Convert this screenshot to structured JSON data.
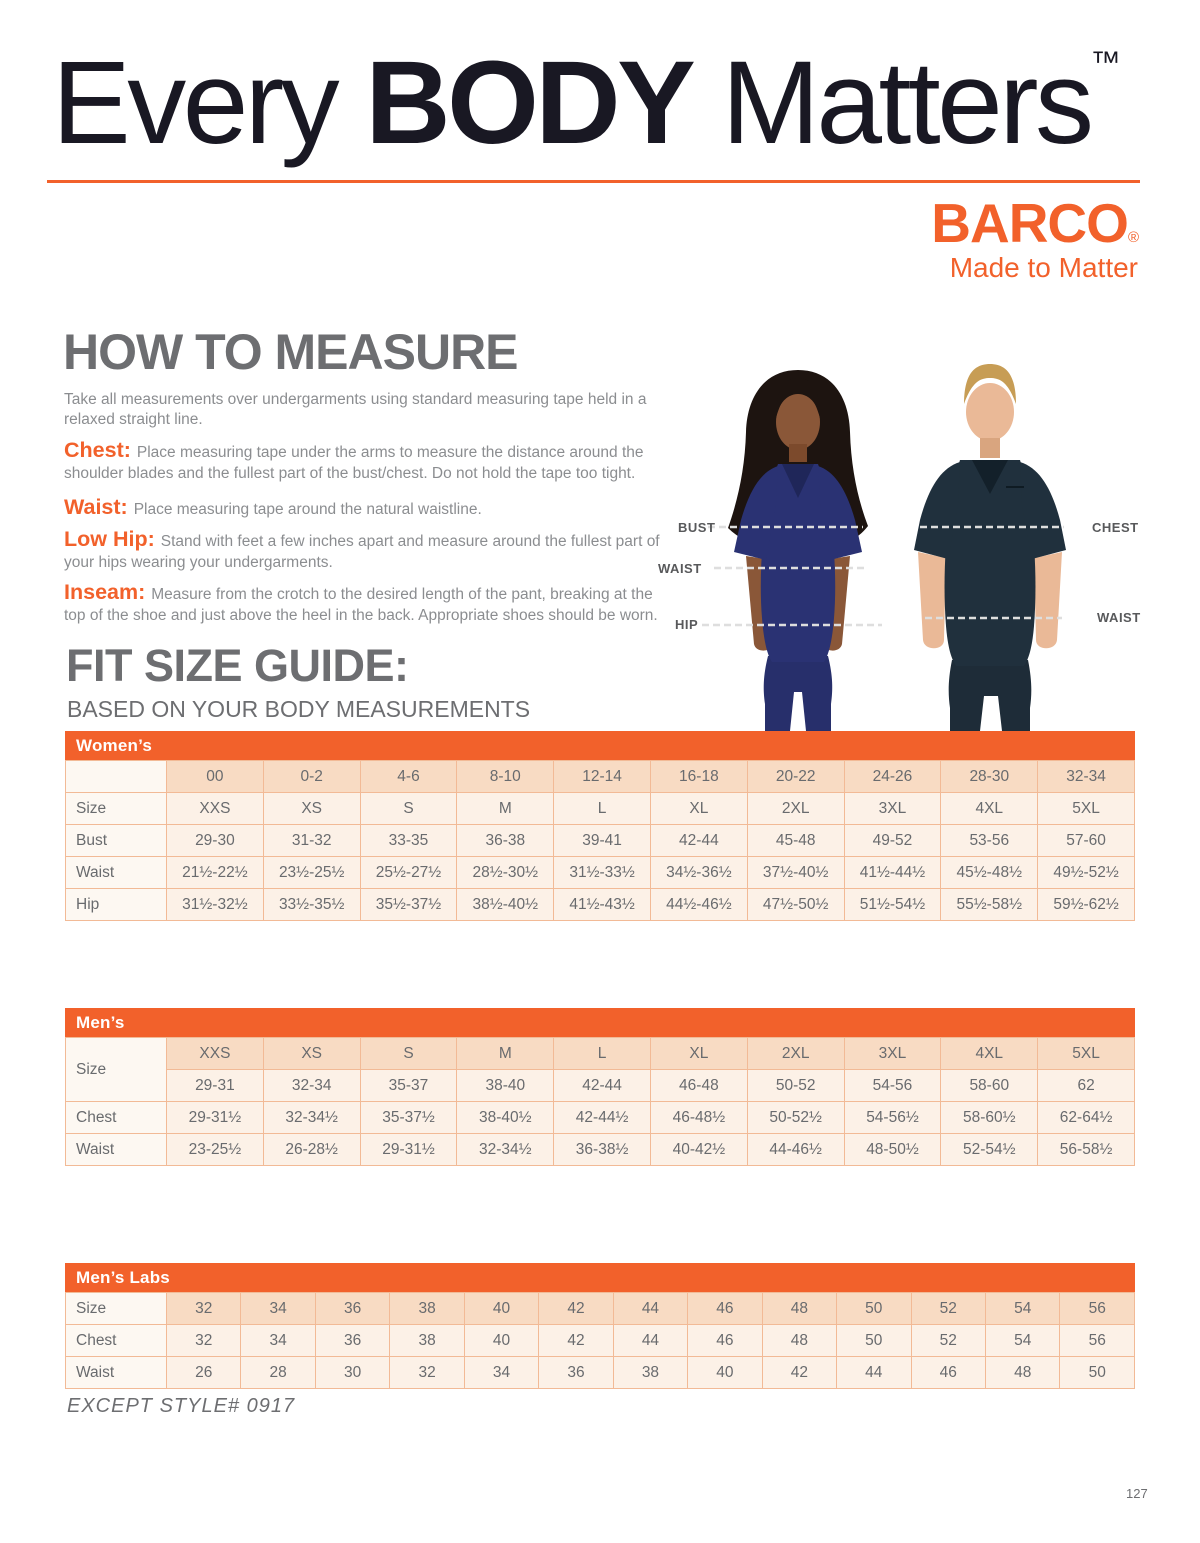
{
  "colors": {
    "accent": "#F2612B",
    "title_text": "#191823",
    "heading_gray": "#6D6E71",
    "body_gray": "#8B8D90"
  },
  "header": {
    "title_regular_1": "Every ",
    "title_bold": "BODY",
    "title_regular_2": " Matters",
    "title_trademark": "™"
  },
  "brand": {
    "logo": "BARCO",
    "registered": "®",
    "tagline": "Made to Matter"
  },
  "how_to_measure": {
    "heading": "HOW TO MEASURE",
    "intro": "Take all measurements over undergarments using standard measuring tape held in a relaxed straight line.",
    "items": [
      {
        "term": "Chest: ",
        "text": "Place measuring tape under the arms to measure the distance around the shoulder blades and the fullest part of the bust/chest. Do not hold the tape too tight."
      },
      {
        "term": "Waist: ",
        "text": "Place measuring tape around the natural waistline."
      },
      {
        "term": "Low Hip: ",
        "text": "Stand with feet a few inches apart and measure around the fullest part of your hips wearing your undergarments."
      },
      {
        "term": "Inseam: ",
        "text": "Measure from the crotch to the desired length of the pant, breaking at the top of the shoe and just above the heel in the back. Appropriate shoes should be worn."
      }
    ]
  },
  "photo": {
    "labels": {
      "bust": "BUST",
      "waist_left": "WAIST",
      "hip": "HIP",
      "chest": "CHEST",
      "waist_right": "WAIST"
    }
  },
  "fit_guide": {
    "heading": "FIT SIZE GUIDE:",
    "subheading": "BASED ON YOUR BODY MEASUREMENTS"
  },
  "womens_table": {
    "header": "Women’s",
    "rows": [
      {
        "label": "",
        "header": true,
        "values": [
          "00",
          "0-2",
          "4-6",
          "8-10",
          "12-14",
          "16-18",
          "20-22",
          "24-26",
          "28-30",
          "32-34"
        ]
      },
      {
        "label": "Size",
        "values": [
          "XXS",
          "XS",
          "S",
          "M",
          "L",
          "XL",
          "2XL",
          "3XL",
          "4XL",
          "5XL"
        ]
      },
      {
        "label": "Bust",
        "values": [
          "29-30",
          "31-32",
          "33-35",
          "36-38",
          "39-41",
          "42-44",
          "45-48",
          "49-52",
          "53-56",
          "57-60"
        ]
      },
      {
        "label": "Waist",
        "values": [
          "21½-22½",
          "23½-25½",
          "25½-27½",
          "28½-30½",
          "31½-33½",
          "34½-36½",
          "37½-40½",
          "41½-44½",
          "45½-48½",
          "49½-52½"
        ]
      },
      {
        "label": "Hip",
        "values": [
          "31½-32½",
          "33½-35½",
          "35½-37½",
          "38½-40½",
          "41½-43½",
          "44½-46½",
          "47½-50½",
          "51½-54½",
          "55½-58½",
          "59½-62½"
        ]
      }
    ]
  },
  "mens_table": {
    "header": "Men’s",
    "rows": [
      {
        "label": "Size",
        "label_rowspan": 2,
        "header": true,
        "values": [
          "XXS",
          "XS",
          "S",
          "M",
          "L",
          "XL",
          "2XL",
          "3XL",
          "4XL",
          "5XL"
        ]
      },
      {
        "label": null,
        "values": [
          "29-31",
          "32-34",
          "35-37",
          "38-40",
          "42-44",
          "46-48",
          "50-52",
          "54-56",
          "58-60",
          "62"
        ]
      },
      {
        "label": "Chest",
        "values": [
          "29-31½",
          "32-34½",
          "35-37½",
          "38-40½",
          "42-44½",
          "46-48½",
          "50-52½",
          "54-56½",
          "58-60½",
          "62-64½"
        ]
      },
      {
        "label": "Waist",
        "values": [
          "23-25½",
          "26-28½",
          "29-31½",
          "32-34½",
          "36-38½",
          "40-42½",
          "44-46½",
          "48-50½",
          "52-54½",
          "56-58½"
        ]
      }
    ]
  },
  "mens_labs_table": {
    "header": "Men’s Labs",
    "rows": [
      {
        "label": "Size",
        "header": true,
        "values": [
          "32",
          "34",
          "36",
          "38",
          "40",
          "42",
          "44",
          "46",
          "48",
          "50",
          "52",
          "54",
          "56"
        ]
      },
      {
        "label": "Chest",
        "values": [
          "32",
          "34",
          "36",
          "38",
          "40",
          "42",
          "44",
          "46",
          "48",
          "50",
          "52",
          "54",
          "56"
        ]
      },
      {
        "label": "Waist",
        "values": [
          "26",
          "28",
          "30",
          "32",
          "34",
          "36",
          "38",
          "40",
          "42",
          "44",
          "46",
          "48",
          "50"
        ]
      }
    ]
  },
  "footer": {
    "footnote": "EXCEPT STYLE# 0917",
    "page_number": "127"
  }
}
